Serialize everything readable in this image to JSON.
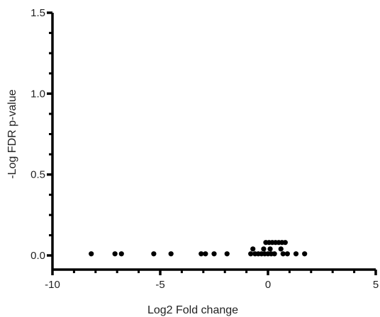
{
  "chart_data": {
    "type": "scatter",
    "title": "",
    "xlabel": "Log2 Fold change",
    "ylabel": "-Log FDR p-value",
    "xlim": [
      -10,
      5
    ],
    "ylim": [
      0,
      1.5
    ],
    "xticks": [
      -10,
      -5,
      0,
      5
    ],
    "xtick_labels": [
      "-10",
      "-5",
      "0",
      "5"
    ],
    "yticks": [
      0.0,
      0.5,
      1.0,
      1.5
    ],
    "ytick_labels": [
      "0.0",
      "0.5",
      "1.0",
      "1.5"
    ],
    "grid": false,
    "legend": "none",
    "marker_color": "#000000",
    "points": [
      {
        "x": -8.2,
        "y": 0.01
      },
      {
        "x": -7.1,
        "y": 0.01
      },
      {
        "x": -6.8,
        "y": 0.01
      },
      {
        "x": -5.3,
        "y": 0.01
      },
      {
        "x": -4.5,
        "y": 0.01
      },
      {
        "x": -3.1,
        "y": 0.01
      },
      {
        "x": -2.9,
        "y": 0.01
      },
      {
        "x": -2.5,
        "y": 0.01
      },
      {
        "x": -1.9,
        "y": 0.01
      },
      {
        "x": -0.8,
        "y": 0.01
      },
      {
        "x": -0.6,
        "y": 0.01
      },
      {
        "x": -0.45,
        "y": 0.01
      },
      {
        "x": -0.3,
        "y": 0.01
      },
      {
        "x": -0.15,
        "y": 0.01
      },
      {
        "x": 0.0,
        "y": 0.01
      },
      {
        "x": 0.15,
        "y": 0.01
      },
      {
        "x": 0.3,
        "y": 0.01
      },
      {
        "x": 0.7,
        "y": 0.01
      },
      {
        "x": 0.9,
        "y": 0.01
      },
      {
        "x": 1.3,
        "y": 0.01
      },
      {
        "x": 1.7,
        "y": 0.01
      },
      {
        "x": -0.7,
        "y": 0.04
      },
      {
        "x": -0.2,
        "y": 0.04
      },
      {
        "x": 0.1,
        "y": 0.04
      },
      {
        "x": 0.6,
        "y": 0.04
      },
      {
        "x": -0.1,
        "y": 0.08
      },
      {
        "x": 0.05,
        "y": 0.08
      },
      {
        "x": 0.2,
        "y": 0.08
      },
      {
        "x": 0.35,
        "y": 0.08
      },
      {
        "x": 0.5,
        "y": 0.08
      },
      {
        "x": 0.65,
        "y": 0.08
      },
      {
        "x": 0.8,
        "y": 0.08
      }
    ]
  }
}
